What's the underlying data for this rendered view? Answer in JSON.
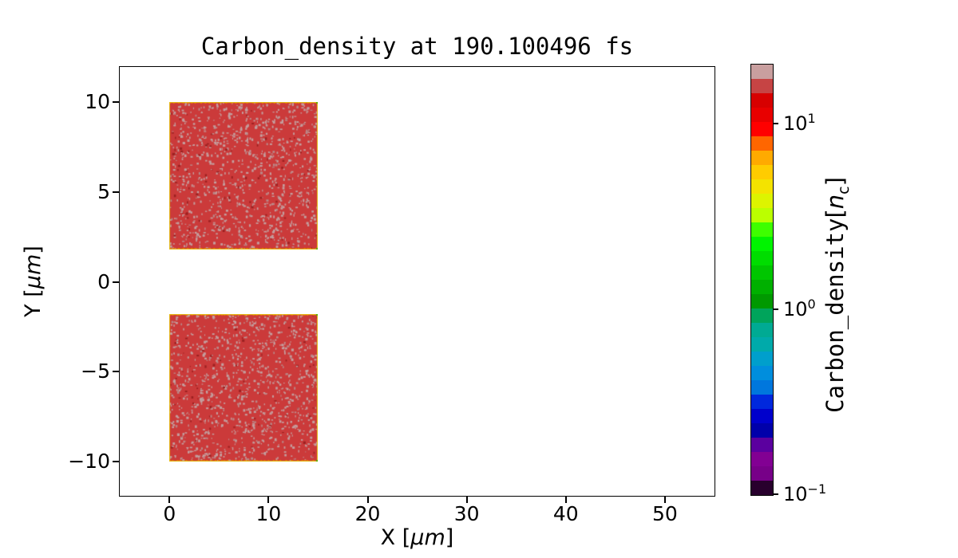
{
  "title": "Carbon_density at 190.100496 fs",
  "axes": {
    "xlabel": {
      "pre": "X [",
      "italic": "μm",
      "post": "]"
    },
    "ylabel": {
      "pre": "Y [",
      "italic": "μm",
      "post": "]"
    },
    "x_ticks": [
      {
        "v": 0,
        "label": "0"
      },
      {
        "v": 10,
        "label": "10"
      },
      {
        "v": 20,
        "label": "20"
      },
      {
        "v": 30,
        "label": "30"
      },
      {
        "v": 40,
        "label": "40"
      },
      {
        "v": 50,
        "label": "50"
      }
    ],
    "y_ticks": [
      {
        "v": 10,
        "label": "10"
      },
      {
        "v": 5,
        "label": "5"
      },
      {
        "v": 0,
        "label": "0"
      },
      {
        "v": -5,
        "label": "−5"
      },
      {
        "v": -10,
        "label": "−10"
      }
    ]
  },
  "colorbar": {
    "label": {
      "pre": "Carbon_density",
      "bracket_open": "[",
      "italic": "n",
      "sub": "c",
      "bracket_close": "]"
    },
    "ticks": [
      {
        "base": "10",
        "exp": "1",
        "frac": 0.861
      },
      {
        "base": "10",
        "exp": "0",
        "frac": 0.43
      },
      {
        "base": "10",
        "exp": "−1",
        "frac": 0.0
      }
    ],
    "band_colors_bottom_to_top": [
      "#28002d",
      "#770088",
      "#820093",
      "#5b009f",
      "#0000aa",
      "#0000cc",
      "#0028dd",
      "#0077dd",
      "#008edd",
      "#009fcc",
      "#00aaaa",
      "#00aa93",
      "#00a45b",
      "#009900",
      "#00b000",
      "#00c600",
      "#00dd00",
      "#00f400",
      "#3eff00",
      "#bbff00",
      "#ddf400",
      "#f4e300",
      "#ffcc00",
      "#ffaa00",
      "#ff6600",
      "#ff0000",
      "#e80000",
      "#d70000",
      "#c64444",
      "#c99f9f"
    ],
    "outline_color": "#000000"
  },
  "chart_data": {
    "type": "heatmap",
    "title": "Carbon_density at 190.100496 fs",
    "xlabel": "X [μm]",
    "ylabel": "Y [μm]",
    "xlim": [
      -5.1,
      55.0
    ],
    "ylim": [
      -11.9,
      12.0
    ],
    "x_tick_values": [
      0,
      10,
      20,
      30,
      40,
      50
    ],
    "y_tick_values": [
      10,
      5,
      0,
      -5,
      -10
    ],
    "color_scale": "log",
    "cmin": 0.1,
    "cmax": 20,
    "colormap": "nipy_spectral",
    "blocks": [
      {
        "x0": 0,
        "x1": 15,
        "y0": 1.8,
        "y1": 10,
        "density_nc": 12
      },
      {
        "x0": 0,
        "x1": 15,
        "y0": -10,
        "y1": -1.8,
        "density_nc": 12
      }
    ]
  },
  "style": {
    "background": "#ffffff",
    "axis_color": "#000000",
    "block_base": "#cb3a3a",
    "block_speckle": "#c49e9e",
    "block_speckle2": "#b98888",
    "block_dark_dot": "#9c2121",
    "block_edge": "#e6c117",
    "block_edge_inner": "#f07000",
    "block_corner": "#58b000"
  }
}
